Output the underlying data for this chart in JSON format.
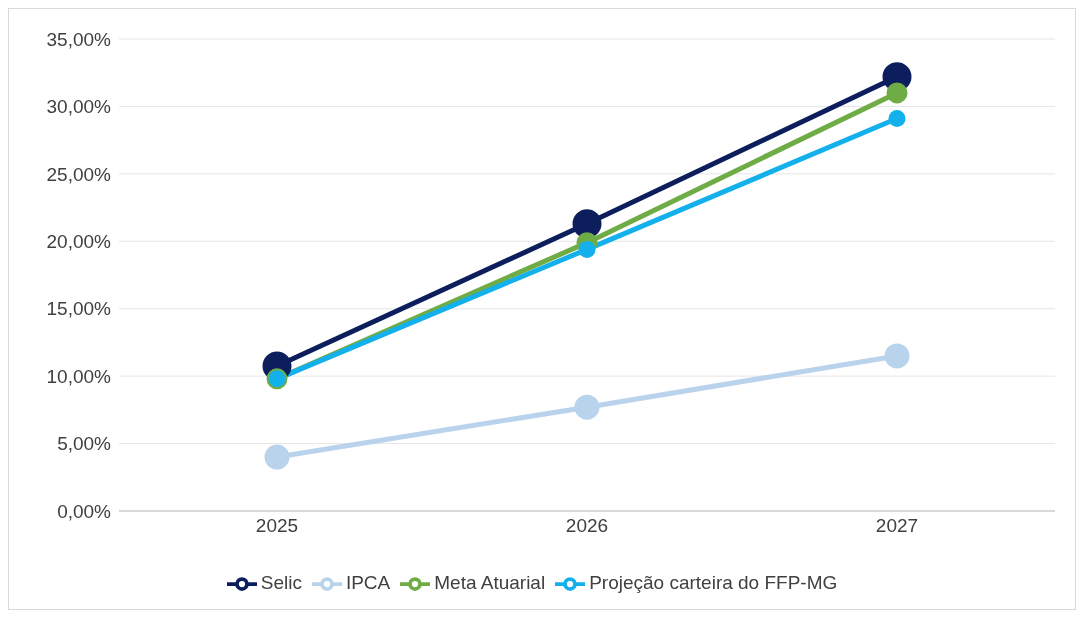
{
  "chart_data": {
    "type": "line",
    "categories": [
      "2025",
      "2026",
      "2027"
    ],
    "series": [
      {
        "name": "Selic",
        "color": "#0c1f5c",
        "values": [
          10.75,
          21.3,
          32.2
        ]
      },
      {
        "name": "IPCA",
        "color": "#b9d3ec",
        "values": [
          4.0,
          7.7,
          11.5
        ]
      },
      {
        "name": "Meta Atuarial",
        "color": "#6fac46",
        "values": [
          9.8,
          19.9,
          31.0
        ]
      },
      {
        "name": "Projeção carteira do FFP-MG",
        "color": "#14b0ec",
        "values": [
          9.8,
          19.4,
          29.1
        ]
      }
    ],
    "ylim": [
      0,
      35
    ],
    "yticks": [
      {
        "value": 0,
        "label": "0,00%"
      },
      {
        "value": 5,
        "label": "5,00%"
      },
      {
        "value": 10,
        "label": "10,00%"
      },
      {
        "value": 15,
        "label": "15,00%"
      },
      {
        "value": 20,
        "label": "20,00%"
      },
      {
        "value": 25,
        "label": "25,00%"
      },
      {
        "value": 30,
        "label": "30,00%"
      },
      {
        "value": 35,
        "label": "35,00%"
      }
    ],
    "grid": "y",
    "legend": "bottom",
    "marker": "circle",
    "line_style": "solid"
  }
}
